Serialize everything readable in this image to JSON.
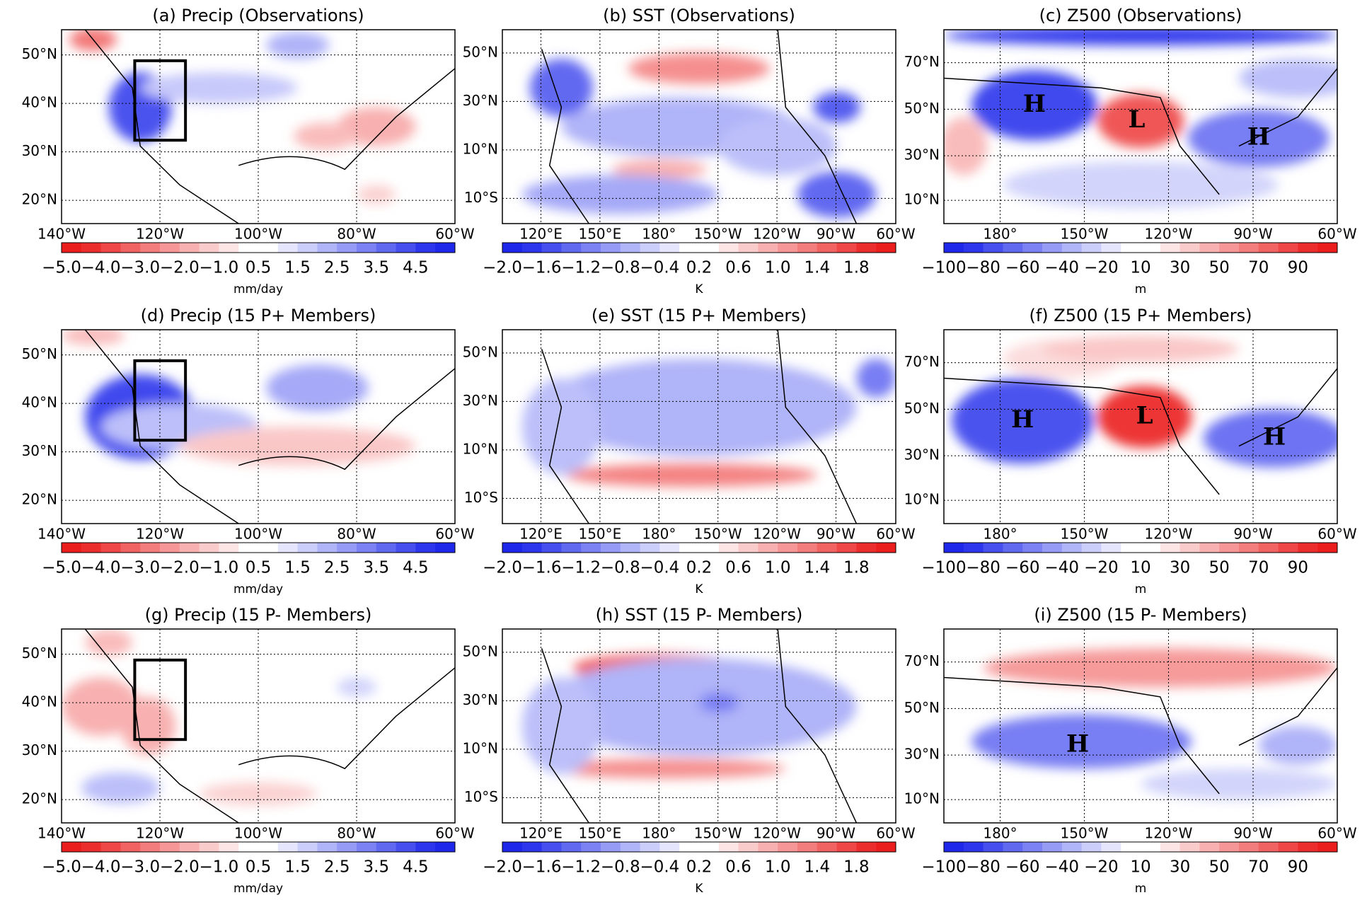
{
  "panels": [
    {
      "title": "(a) Precip (Observations)",
      "xticks": [
        "140°W",
        "120°W",
        "100°W",
        "80°W",
        "60°W"
      ],
      "yticks": [
        "50°N",
        "40°N",
        "30°N",
        "20°N"
      ],
      "colorbar": {
        "ticks": [
          "−5.0",
          "−4.0",
          "−3.0",
          "−2.0",
          "−1.0",
          "0.5",
          "1.5",
          "2.5",
          "3.5",
          "4.5"
        ],
        "label": "mm/day"
      },
      "labels": []
    },
    {
      "title": "(b) SST (Observations)",
      "xticks": [
        "120°E",
        "150°E",
        "180°",
        "150°W",
        "120°W",
        "90°W",
        "60°W"
      ],
      "yticks": [
        "50°N",
        "30°N",
        "10°N",
        "10°S"
      ],
      "colorbar": {
        "ticks": [
          "−2.0",
          "−1.6",
          "−1.2",
          "−0.8",
          "−0.4",
          "0.2",
          "0.6",
          "1.0",
          "1.4",
          "1.8"
        ],
        "label": "K"
      },
      "labels": []
    },
    {
      "title": "(c) Z500 (Observations)",
      "xticks": [
        "180°",
        "150°W",
        "120°W",
        "90°W",
        "60°W"
      ],
      "yticks": [
        "70°N",
        "50°N",
        "30°N",
        "10°N"
      ],
      "colorbar": {
        "ticks": [
          "−100",
          "−80",
          "−60",
          "−40",
          "−20",
          "10",
          "30",
          "50",
          "70",
          "90"
        ],
        "label": "m"
      },
      "labels": [
        "H",
        "L",
        "H"
      ]
    },
    {
      "title": "(d) Precip (15 P+ Members)",
      "xticks": [
        "140°W",
        "120°W",
        "100°W",
        "80°W",
        "60°W"
      ],
      "yticks": [
        "50°N",
        "40°N",
        "30°N",
        "20°N"
      ],
      "colorbar": {
        "ticks": [
          "−5.0",
          "−4.0",
          "−3.0",
          "−2.0",
          "−1.0",
          "0.5",
          "1.5",
          "2.5",
          "3.5",
          "4.5"
        ],
        "label": "mm/day"
      },
      "labels": []
    },
    {
      "title": "(e) SST (15 P+ Members)",
      "xticks": [
        "120°E",
        "150°E",
        "180°",
        "150°W",
        "120°W",
        "90°W",
        "60°W"
      ],
      "yticks": [
        "50°N",
        "30°N",
        "10°N",
        "10°S"
      ],
      "colorbar": {
        "ticks": [
          "−2.0",
          "−1.6",
          "−1.2",
          "−0.8",
          "−0.4",
          "0.2",
          "0.6",
          "1.0",
          "1.4",
          "1.8"
        ],
        "label": "K"
      },
      "labels": []
    },
    {
      "title": "(f) Z500 (15 P+ Members)",
      "xticks": [
        "180°",
        "150°W",
        "120°W",
        "90°W",
        "60°W"
      ],
      "yticks": [
        "70°N",
        "50°N",
        "30°N",
        "10°N"
      ],
      "colorbar": {
        "ticks": [
          "−100",
          "−80",
          "−60",
          "−40",
          "−20",
          "10",
          "30",
          "50",
          "70",
          "90"
        ],
        "label": "m"
      },
      "labels": [
        "H",
        "L",
        "H"
      ]
    },
    {
      "title": "(g) Precip (15 P- Members)",
      "xticks": [
        "140°W",
        "120°W",
        "100°W",
        "80°W",
        "60°W"
      ],
      "yticks": [
        "50°N",
        "40°N",
        "30°N",
        "20°N"
      ],
      "colorbar": {
        "ticks": [
          "−5.0",
          "−4.0",
          "−3.0",
          "−2.0",
          "−1.0",
          "0.5",
          "1.5",
          "2.5",
          "3.5",
          "4.5"
        ],
        "label": "mm/day"
      },
      "labels": []
    },
    {
      "title": "(h) SST (15 P- Members)",
      "xticks": [
        "120°E",
        "150°E",
        "180°",
        "150°W",
        "120°W",
        "90°W",
        "60°W"
      ],
      "yticks": [
        "50°N",
        "30°N",
        "10°N",
        "10°S"
      ],
      "colorbar": {
        "ticks": [
          "−2.0",
          "−1.6",
          "−1.2",
          "−0.8",
          "−0.4",
          "0.2",
          "0.6",
          "1.0",
          "1.4",
          "1.8"
        ],
        "label": "K"
      },
      "labels": []
    },
    {
      "title": "(i) Z500 (15 P- Members)",
      "xticks": [
        "180°",
        "150°W",
        "120°W",
        "90°W",
        "60°W"
      ],
      "yticks": [
        "70°N",
        "50°N",
        "30°N",
        "10°N"
      ],
      "colorbar": {
        "ticks": [
          "−100",
          "−80",
          "−60",
          "−40",
          "−20",
          "10",
          "30",
          "50",
          "70",
          "90"
        ],
        "label": "m"
      },
      "labels": [
        "H"
      ]
    }
  ]
}
